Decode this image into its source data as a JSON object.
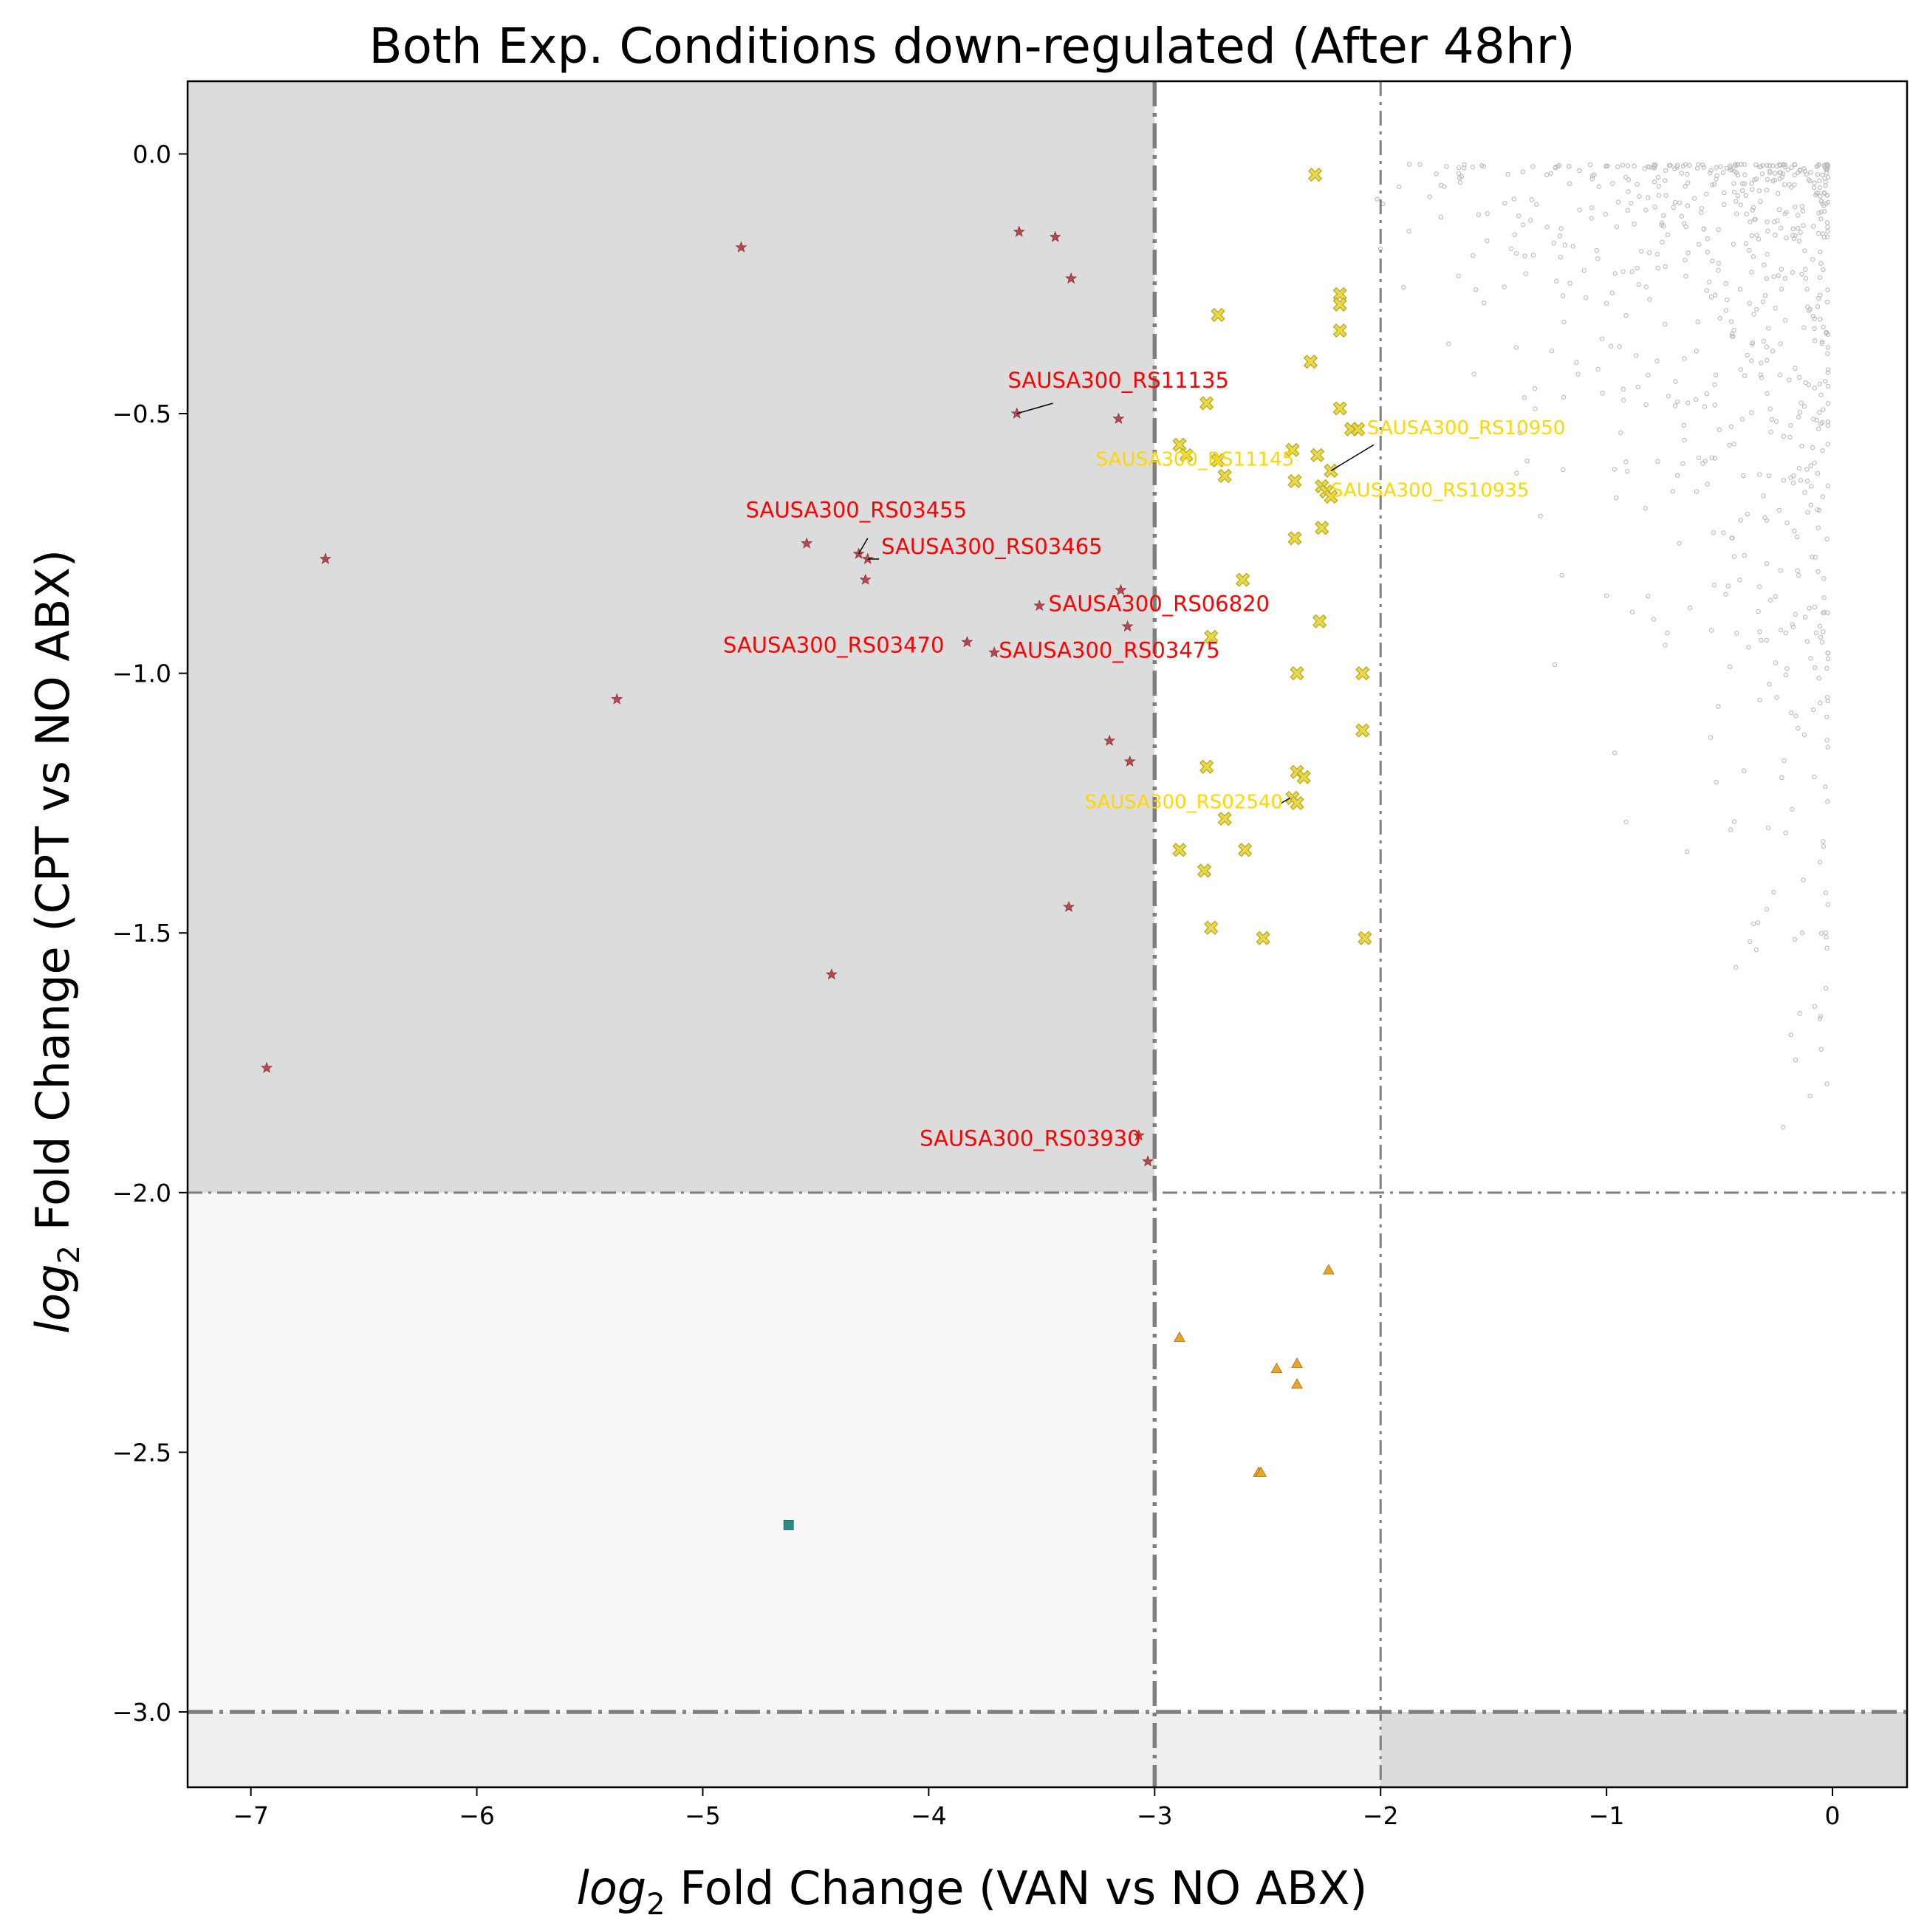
{
  "chart_data": {
    "type": "scatter",
    "title": "Both Exp. Conditions down-regulated (After 48hr)",
    "xlabel": {
      "italic": "log",
      "sub": "2",
      "rest": " Fold Change (VAN vs NO ABX)"
    },
    "ylabel": {
      "italic": "log",
      "sub": "2",
      "rest": " Fold Change (CPT vs NO ABX)"
    },
    "xlim": [
      -7.28,
      0.33
    ],
    "ylim": [
      -3.145,
      0.14
    ],
    "xticks": [
      {
        "value": -7,
        "label": "−7"
      },
      {
        "value": -6,
        "label": "−6"
      },
      {
        "value": -5,
        "label": "−5"
      },
      {
        "value": -4,
        "label": "−4"
      },
      {
        "value": -3,
        "label": "−3"
      },
      {
        "value": -2,
        "label": "−2"
      },
      {
        "value": -1,
        "label": "−1"
      },
      {
        "value": 0,
        "label": "0"
      }
    ],
    "yticks": [
      {
        "value": 0.0,
        "label": "0.0"
      },
      {
        "value": -0.5,
        "label": "−0.5"
      },
      {
        "value": -1.0,
        "label": "−1.0"
      },
      {
        "value": -1.5,
        "label": "−1.5"
      },
      {
        "value": -2.0,
        "label": "−2.0"
      },
      {
        "value": -2.5,
        "label": "−2.5"
      },
      {
        "value": -3.0,
        "label": "−3.0"
      }
    ],
    "grid": false,
    "legend": "none",
    "regions": [
      {
        "x": [
          -7.28,
          -3
        ],
        "y": [
          -2,
          0.14
        ],
        "color": "#dcdcdc"
      },
      {
        "x": [
          -7.28,
          -3
        ],
        "y": [
          -3,
          -2
        ],
        "color": "#f7f7f7"
      },
      {
        "x": [
          -7.28,
          -2
        ],
        "y": [
          -3.145,
          -3
        ],
        "color": "#efefef"
      },
      {
        "x": [
          -2,
          0.33
        ],
        "y": [
          -3.145,
          -3
        ],
        "color": "#dcdcdc"
      }
    ],
    "threshold_lines": [
      {
        "axis": "x",
        "value": -3,
        "style": "bold"
      },
      {
        "axis": "x",
        "value": -2,
        "style": "thin"
      },
      {
        "axis": "y",
        "value": -2,
        "style": "thin"
      },
      {
        "axis": "y",
        "value": -3,
        "style": "bold"
      }
    ],
    "series": [
      {
        "marker": "star",
        "color": "#b5484e",
        "points": [
          [
            -6.93,
            -1.76
          ],
          [
            -6.67,
            -0.78
          ],
          [
            -5.38,
            -1.05
          ],
          [
            -4.83,
            -0.18
          ],
          [
            -4.54,
            -0.75
          ],
          [
            -4.43,
            -1.58
          ],
          [
            -4.31,
            -0.77
          ],
          [
            -4.27,
            -0.78
          ],
          [
            -4.28,
            -0.82
          ],
          [
            -3.83,
            -0.94
          ],
          [
            -3.71,
            -0.96
          ],
          [
            -3.61,
            -0.5
          ],
          [
            -3.6,
            -0.15
          ],
          [
            -3.44,
            -0.16
          ],
          [
            -3.37,
            -0.24
          ],
          [
            -3.38,
            -1.45
          ],
          [
            -3.51,
            -0.87
          ],
          [
            -3.2,
            -1.13
          ],
          [
            -3.16,
            -0.51
          ],
          [
            -3.15,
            -0.84
          ],
          [
            -3.12,
            -0.91
          ],
          [
            -3.11,
            -1.17
          ],
          [
            -3.07,
            -1.89
          ],
          [
            -3.03,
            -1.94
          ]
        ]
      },
      {
        "marker": "x",
        "color": "#e8d84a",
        "points": [
          [
            -2.29,
            -0.04
          ],
          [
            -2.72,
            -0.31
          ],
          [
            -2.31,
            -0.4
          ],
          [
            -2.18,
            -0.27
          ],
          [
            -2.18,
            -0.29
          ],
          [
            -2.18,
            -0.34
          ],
          [
            -2.77,
            -0.48
          ],
          [
            -2.18,
            -0.49
          ],
          [
            -2.13,
            -0.53
          ],
          [
            -2.1,
            -0.53
          ],
          [
            -2.89,
            -0.56
          ],
          [
            -2.86,
            -0.58
          ],
          [
            -2.28,
            -0.58
          ],
          [
            -2.39,
            -0.57
          ],
          [
            -2.22,
            -0.61
          ],
          [
            -2.72,
            -0.59
          ],
          [
            -2.69,
            -0.62
          ],
          [
            -2.38,
            -0.63
          ],
          [
            -2.26,
            -0.64
          ],
          [
            -2.24,
            -0.65
          ],
          [
            -2.22,
            -0.66
          ],
          [
            -2.26,
            -0.72
          ],
          [
            -2.38,
            -0.74
          ],
          [
            -2.61,
            -0.82
          ],
          [
            -2.27,
            -0.9
          ],
          [
            -2.75,
            -0.93
          ],
          [
            -2.37,
            -1.0
          ],
          [
            -2.08,
            -1.0
          ],
          [
            -2.08,
            -1.11
          ],
          [
            -2.77,
            -1.18
          ],
          [
            -2.37,
            -1.19
          ],
          [
            -2.34,
            -1.2
          ],
          [
            -2.39,
            -1.24
          ],
          [
            -2.37,
            -1.25
          ],
          [
            -2.69,
            -1.28
          ],
          [
            -2.89,
            -1.34
          ],
          [
            -2.6,
            -1.34
          ],
          [
            -2.78,
            -1.38
          ],
          [
            -2.75,
            -1.49
          ],
          [
            -2.52,
            -1.51
          ],
          [
            -2.07,
            -1.51
          ]
        ]
      },
      {
        "marker": "triangle",
        "color": "#e8a628",
        "points": [
          [
            -2.23,
            -2.15
          ],
          [
            -2.89,
            -2.28
          ],
          [
            -2.46,
            -2.34
          ],
          [
            -2.37,
            -2.33
          ],
          [
            -2.37,
            -2.37
          ],
          [
            -2.54,
            -2.54
          ],
          [
            -2.53,
            -2.54
          ]
        ]
      },
      {
        "marker": "square",
        "color": "#2a8a86",
        "points": [
          [
            -4.62,
            -2.64
          ]
        ]
      },
      {
        "marker": "circle",
        "color": "#bdbdbd",
        "generated": {
          "seed": 12345,
          "count": 700,
          "x_range": [
            -2.1,
            -0.02
          ],
          "y_range": [
            -2.0,
            -0.02
          ],
          "bias_toward": [
            0,
            0
          ]
        }
      }
    ],
    "annotations": [
      {
        "text": "SAUSA300_RS11135",
        "color": "#ff0000",
        "x": -3.65,
        "y": -0.45,
        "px": -3.61,
        "py": -0.5,
        "lx": -3.45,
        "ly": -0.48
      },
      {
        "text": "SAUSA300_RS03455",
        "color": "#ff0000",
        "x": -4.81,
        "y": -0.7,
        "px": -4.31,
        "py": -0.77,
        "lx": -4.27,
        "ly": -0.74
      },
      {
        "text": "SAUSA300_RS03465",
        "color": "#ff0000",
        "x": -4.21,
        "y": -0.77,
        "px": -4.27,
        "py": -0.78,
        "lx": -4.22,
        "ly": -0.78
      },
      {
        "text": "SAUSA300_RS06820",
        "color": "#ff0000",
        "x": -3.47,
        "y": -0.88,
        "px": null,
        "py": null,
        "lx": null,
        "ly": null
      },
      {
        "text": "SAUSA300_RS03470",
        "color": "#ff0000",
        "x": -4.91,
        "y": -0.96,
        "px": null,
        "py": null,
        "lx": null,
        "ly": null
      },
      {
        "text": "SAUSA300_RS03475",
        "color": "#ff0000",
        "x": -3.69,
        "y": -0.97,
        "px": null,
        "py": null,
        "lx": null,
        "ly": null
      },
      {
        "text": "SAUSA300_RS03930",
        "color": "#ff0000",
        "x": -4.04,
        "y": -1.91,
        "px": null,
        "py": null,
        "lx": null,
        "ly": null
      },
      {
        "text": "SAUSA300_RS10950",
        "color": "#ffd700",
        "x": -2.06,
        "y": -0.54,
        "px": -2.22,
        "py": -0.61,
        "lx": -2.03,
        "ly": -0.56
      },
      {
        "text": "SAUSA300_RS11145",
        "color": "#ffd700",
        "x": -3.26,
        "y": -0.6,
        "px": null,
        "py": null,
        "lx": null,
        "ly": null
      },
      {
        "text": "SAUSA300_RS10935",
        "color": "#ffd700",
        "x": -2.22,
        "y": -0.66,
        "px": null,
        "py": null,
        "lx": null,
        "ly": null
      },
      {
        "text": "SAUSA300_RS02540",
        "color": "#ffd700",
        "x": -3.31,
        "y": -1.26,
        "px": -2.4,
        "py": -1.24,
        "lx": -2.44,
        "ly": -1.25
      }
    ]
  }
}
